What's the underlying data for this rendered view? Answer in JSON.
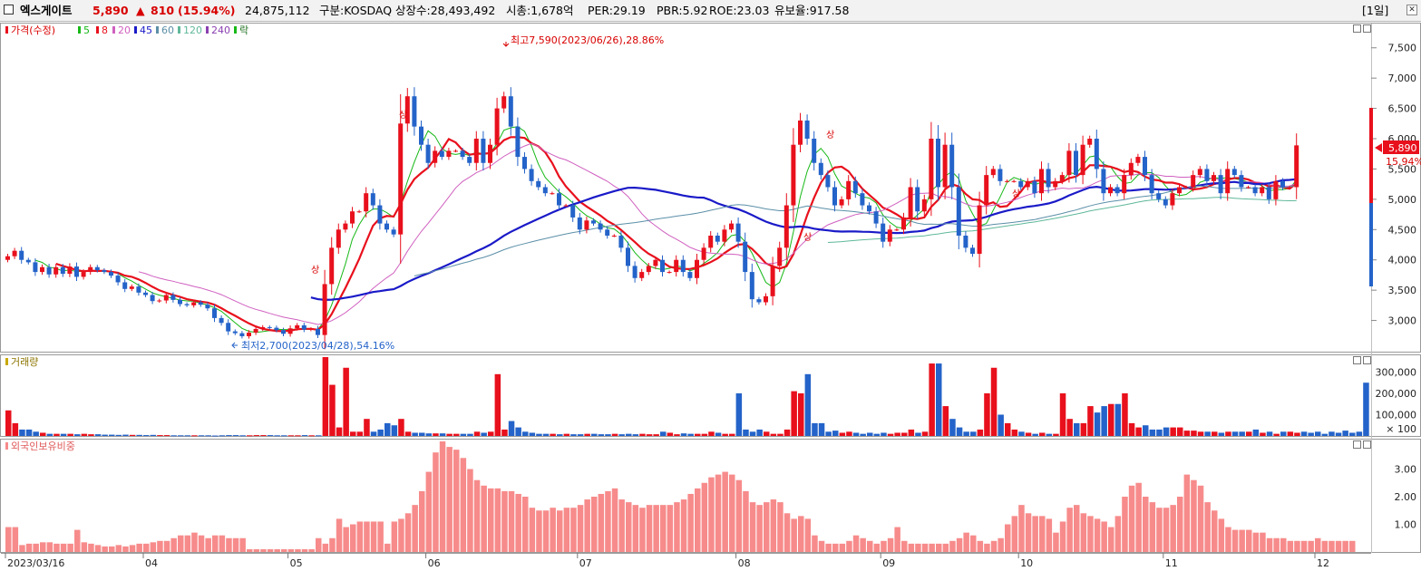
{
  "header": {
    "name": "엑스게이트",
    "price": "5,890",
    "change_arrow": "▲",
    "change": "810",
    "change_pct": "(15.94%)",
    "volume": "24,875,112",
    "market": "구분:KOSDAQ",
    "shares": "상장수:28,493,492",
    "mcap": "시총:1,678억",
    "per": "PER:29.19",
    "pbr": "PBR:5.92",
    "roe": "ROE:23.03",
    "reserve": "유보율:917.58",
    "period": "[1일]"
  },
  "colors": {
    "up": "#e8101c",
    "down": "#2463c9",
    "ma5": "#16b816",
    "ma8": "#e8101c",
    "ma20": "#d060c0",
    "ma45": "#1a1ac8",
    "ma60": "#5b8fa8",
    "ma120": "#5fb89a",
    "foreign": "#f78b8b",
    "red_text": "#d80000"
  },
  "legend": {
    "price": "가격(수정)",
    "ma5": "5",
    "ma8": "8",
    "ma20": "20",
    "ma45": "45",
    "ma60": "60",
    "ma120": "120",
    "ma240": "240",
    "fall": "락"
  },
  "annotations": {
    "high": "최고7,590(2023/06/26),28.86%",
    "low": "최저2,700(2023/04/28),54.16%",
    "up_mark": "상",
    "price_box": "5,890",
    "price_pct": "15.94%"
  },
  "chart_data": [
    {
      "type": "candlestick",
      "title": "가격(수정)",
      "ylim": [
        2500,
        7900
      ],
      "y_ticks": [
        "7,500",
        "7,000",
        "6,500",
        "6,000",
        "5,500",
        "5,000",
        "4,500",
        "4,000",
        "3,500",
        "3,000"
      ],
      "y_tick_values": [
        7500,
        7000,
        6500,
        6000,
        5500,
        5000,
        4500,
        4000,
        3500,
        3000
      ],
      "x_labels": [
        "2023/03/16",
        "04",
        "05",
        "06",
        "07",
        "08",
        "09",
        "10",
        "11",
        "12"
      ],
      "x_label_index": [
        0,
        20,
        41,
        61,
        83,
        106,
        127,
        147,
        168,
        190
      ],
      "closes": [
        4060,
        4150,
        4000,
        3960,
        3800,
        3880,
        3760,
        3880,
        3770,
        3890,
        3720,
        3800,
        3880,
        3830,
        3800,
        3740,
        3630,
        3520,
        3560,
        3460,
        3420,
        3320,
        3330,
        3420,
        3340,
        3270,
        3250,
        3300,
        3260,
        3200,
        3040,
        2960,
        2820,
        2790,
        2740,
        2800,
        2860,
        2890,
        2880,
        2840,
        2780,
        2870,
        2920,
        2850,
        2860,
        2760,
        3600,
        4200,
        4500,
        4600,
        4800,
        4800,
        5100,
        4900,
        4600,
        4500,
        4420,
        6250,
        6700,
        6200,
        5900,
        5600,
        5800,
        5700,
        5800,
        5800,
        5700,
        5600,
        6000,
        5600,
        5900,
        6500,
        6700,
        6200,
        5700,
        5500,
        5300,
        5200,
        5100,
        5100,
        4900,
        4900,
        4700,
        4500,
        4650,
        4600,
        4500,
        4400,
        4400,
        4200,
        3900,
        3700,
        3800,
        3900,
        4000,
        3800,
        3800,
        4000,
        3800,
        3700,
        4000,
        4200,
        4400,
        4300,
        4500,
        4600,
        4300,
        3800,
        3350,
        3300,
        3400,
        3900,
        4200,
        4900,
        5900,
        6300,
        6000,
        5600,
        5400,
        5200,
        4900,
        5000,
        5300,
        5100,
        4900,
        4800,
        4600,
        4300,
        4500,
        4500,
        4700,
        5200,
        4800,
        5000,
        6000,
        5200,
        5900,
        5200,
        4400,
        4200,
        4100,
        4900,
        5400,
        5500,
        5300,
        5300,
        5300,
        5200,
        5300,
        5100,
        5500,
        5200,
        5300,
        5400,
        5800,
        5400,
        5900,
        6000,
        5500,
        5100,
        5200,
        5100,
        5400,
        5600,
        5700,
        5400,
        5100,
        5000,
        4900,
        5100,
        5200,
        5200,
        5400,
        5500,
        5300,
        5400,
        5100,
        5500,
        5400,
        5200,
        5200,
        5100,
        5200,
        5000,
        5300,
        5200,
        5200,
        5890
      ]
    },
    {
      "type": "bar",
      "title": "거래량",
      "ylim": [
        0,
        370000
      ],
      "y_ticks": [
        "300,000",
        "200,000",
        "100,000",
        "× 100"
      ],
      "y_tick_values": [
        300000,
        200000,
        100000,
        0
      ],
      "values": [
        120000,
        60000,
        30000,
        30000,
        20000,
        15000,
        10000,
        10000,
        10000,
        10000,
        8000,
        10000,
        8000,
        8000,
        6000,
        6000,
        5000,
        6000,
        5000,
        5000,
        4000,
        5000,
        4000,
        4000,
        3000,
        3000,
        3000,
        3000,
        3000,
        3000,
        2000,
        3000,
        4000,
        4000,
        3000,
        3000,
        4000,
        4000,
        4000,
        3000,
        3000,
        3000,
        3000,
        4000,
        3000,
        3000,
        370000,
        240000,
        40000,
        320000,
        20000,
        20000,
        80000,
        20000,
        30000,
        60000,
        50000,
        80000,
        20000,
        15000,
        15000,
        12000,
        12000,
        12000,
        10000,
        10000,
        10000,
        10000,
        20000,
        15000,
        20000,
        290000,
        30000,
        70000,
        40000,
        20000,
        15000,
        10000,
        10000,
        10000,
        8000,
        10000,
        8000,
        8000,
        10000,
        10000,
        8000,
        8000,
        10000,
        8000,
        10000,
        8000,
        10000,
        8000,
        8000,
        20000,
        15000,
        8000,
        12000,
        10000,
        10000,
        10000,
        20000,
        15000,
        10000,
        10000,
        200000,
        30000,
        20000,
        30000,
        20000,
        10000,
        10000,
        30000,
        210000,
        200000,
        290000,
        60000,
        60000,
        20000,
        25000,
        15000,
        20000,
        15000,
        10000,
        15000,
        10000,
        15000,
        10000,
        15000,
        15000,
        30000,
        15000,
        20000,
        340000,
        340000,
        140000,
        80000,
        40000,
        20000,
        20000,
        30000,
        200000,
        320000,
        100000,
        60000,
        30000,
        20000,
        15000,
        10000,
        15000,
        10000,
        10000,
        200000,
        80000,
        60000,
        60000,
        140000,
        110000,
        140000,
        150000,
        150000,
        200000,
        60000,
        40000,
        50000,
        30000,
        30000,
        40000,
        40000,
        40000,
        25000,
        25000,
        20000,
        20000,
        20000,
        15000,
        20000,
        20000,
        20000,
        20000,
        30000,
        15000,
        20000,
        10000,
        20000,
        20000,
        15000,
        20000,
        15000,
        20000,
        10000,
        20000,
        15000,
        25000,
        15000,
        20000,
        250000
      ]
    },
    {
      "type": "bar",
      "title": "외국인보유비중",
      "ylim": [
        0,
        4.0
      ],
      "y_ticks": [
        "3.00",
        "2.00",
        "1.00"
      ],
      "y_tick_values": [
        3.0,
        2.0,
        1.0
      ],
      "values": [
        0.9,
        0.9,
        0.25,
        0.3,
        0.3,
        0.35,
        0.35,
        0.3,
        0.3,
        0.3,
        0.8,
        0.35,
        0.3,
        0.25,
        0.2,
        0.2,
        0.25,
        0.2,
        0.25,
        0.3,
        0.3,
        0.35,
        0.4,
        0.4,
        0.5,
        0.6,
        0.6,
        0.7,
        0.6,
        0.5,
        0.6,
        0.6,
        0.5,
        0.5,
        0.5,
        0.1,
        0.1,
        0.1,
        0.1,
        0.1,
        0.1,
        0.1,
        0.1,
        0.1,
        0.1,
        0.5,
        0.3,
        0.5,
        1.2,
        0.9,
        1.0,
        1.1,
        1.1,
        1.1,
        1.1,
        0.3,
        1.1,
        1.2,
        1.4,
        1.7,
        2.2,
        2.9,
        3.6,
        4.0,
        3.8,
        3.7,
        3.4,
        3.0,
        2.6,
        2.4,
        2.3,
        2.3,
        2.2,
        2.2,
        2.1,
        2.0,
        1.6,
        1.5,
        1.5,
        1.6,
        1.5,
        1.6,
        1.6,
        1.7,
        1.9,
        2.0,
        2.1,
        2.2,
        2.3,
        1.9,
        1.8,
        1.7,
        1.6,
        1.7,
        1.7,
        1.7,
        1.7,
        1.8,
        1.9,
        2.1,
        2.3,
        2.5,
        2.7,
        2.8,
        2.9,
        2.8,
        2.6,
        2.2,
        1.8,
        1.7,
        1.8,
        1.9,
        1.8,
        1.4,
        1.2,
        1.3,
        1.2,
        0.6,
        0.4,
        0.3,
        0.3,
        0.3,
        0.4,
        0.6,
        0.5,
        0.4,
        0.3,
        0.4,
        0.5,
        0.9,
        0.4,
        0.3,
        0.3,
        0.3,
        0.3,
        0.3,
        0.3,
        0.4,
        0.5,
        0.7,
        0.6,
        0.4,
        0.3,
        0.4,
        0.5,
        1.0,
        1.3,
        1.7,
        1.4,
        1.3,
        1.3,
        1.2,
        0.7,
        1.1,
        1.6,
        1.7,
        1.4,
        1.3,
        1.2,
        1.1,
        0.9,
        1.3,
        2.0,
        2.4,
        2.5,
        2.0,
        1.8,
        1.6,
        1.6,
        1.7,
        2.0,
        2.8,
        2.6,
        2.4,
        1.8,
        1.5,
        1.2,
        0.9,
        0.8,
        0.8,
        0.8,
        0.7,
        0.7,
        0.5,
        0.5,
        0.5,
        0.4,
        0.4,
        0.4,
        0.4,
        0.5,
        0.4,
        0.4,
        0.4,
        0.4,
        0.4
      ]
    }
  ]
}
